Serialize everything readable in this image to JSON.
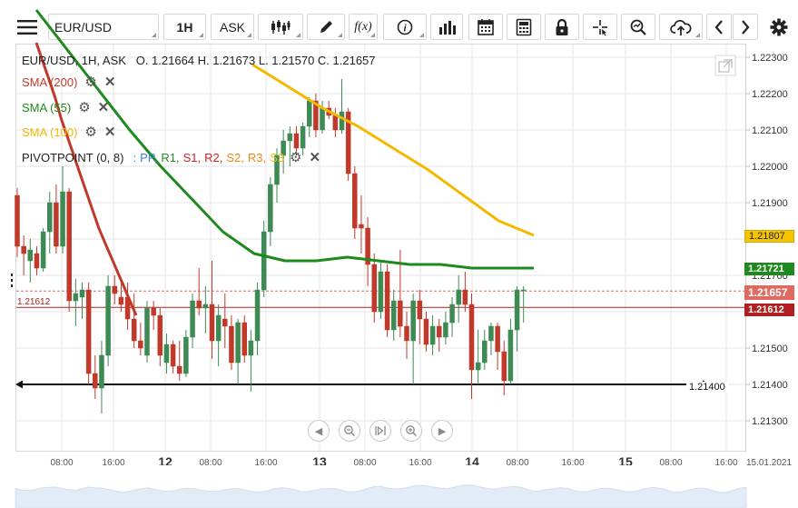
{
  "toolbar": {
    "menu_icon": "hamburger-menu-icon",
    "symbol": "EUR/USD",
    "timeframe": "1H",
    "price_type": "ASK",
    "buttons": [
      "candle-type-icon",
      "draw-pencil-icon",
      "function-fx-icon",
      "info-icon",
      "bar-chart-icon",
      "calendar-icon",
      "calculator-icon",
      "lock-icon",
      "crosshair-icon",
      "zoom-search-icon",
      "cloud-upload-icon",
      "arrow-left-icon",
      "arrow-right-icon",
      "gear-icon"
    ],
    "fx_label": "f(x)"
  },
  "legend": {
    "ohlc": "EUR/USD, 1H, ASK   O. 1.21664 H. 1.21673 L. 1.21570 C. 1.21657",
    "sma200": "SMA (200)",
    "sma55": "SMA (55)",
    "sma100": "SMA (100)",
    "pivot_name": "PIVOTPOINT (0, 8)",
    "pivot_sep": ":",
    "pivot_items": [
      {
        "label": "PP,",
        "color": "#3a7ed8"
      },
      {
        "label": "R1,",
        "color": "#2a8a2a"
      },
      {
        "label": "S1,",
        "color": "#d42020"
      },
      {
        "label": "R2,",
        "color": "#d42020"
      },
      {
        "label": "S2,",
        "color": "#f08a10"
      },
      {
        "label": "R3,",
        "color": "#f08a10"
      },
      {
        "label": "S3",
        "color": "#f0c010"
      }
    ]
  },
  "colors": {
    "up": "#3d8a54",
    "down": "#c0392b",
    "sma200": "#c0392b",
    "sma55": "#1e8a1e",
    "sma100": "#f5b800",
    "grid": "#e6e6e6"
  },
  "price_axis": {
    "ticks": [
      "1.22300",
      "1.22200",
      "1.22100",
      "1.22000",
      "1.21900",
      "1.21800",
      "1.21700",
      "1.21600",
      "1.21500",
      "1.21400",
      "1.21300"
    ]
  },
  "price_tags": {
    "sma100": {
      "value": "1.21807",
      "bg": "#f5c400",
      "fg": "#222222"
    },
    "sma55": {
      "value": "1.21721",
      "bg": "#1e8a1e",
      "fg": "#ffffff"
    },
    "last": {
      "value": "1.21657",
      "bg": "#e06a60",
      "fg": "#ffffff"
    },
    "line": {
      "value": "1.21612",
      "bg": "#b02020",
      "fg": "#ffffff"
    }
  },
  "hline_left_label": "1.21612",
  "hline_right_label": "1.21400",
  "time_axis": {
    "labels": [
      {
        "t": "08:00",
        "bold": false
      },
      {
        "t": "16:00",
        "bold": false
      },
      {
        "t": "12",
        "bold": true
      },
      {
        "t": "08:00",
        "bold": false
      },
      {
        "t": "16:00",
        "bold": false
      },
      {
        "t": "13",
        "bold": true
      },
      {
        "t": "08:00",
        "bold": false
      },
      {
        "t": "16:00",
        "bold": false
      },
      {
        "t": "14",
        "bold": true
      },
      {
        "t": "08:00",
        "bold": false
      },
      {
        "t": "16:00",
        "bold": false
      },
      {
        "t": "15",
        "bold": true
      },
      {
        "t": "08:00",
        "bold": false
      },
      {
        "t": "16:00",
        "bold": false
      },
      {
        "t": "15.01.2021",
        "bold": false
      }
    ]
  },
  "nav_buttons": [
    "prev-icon",
    "zoom-out-icon",
    "reset-icon",
    "zoom-in-icon",
    "next-icon"
  ],
  "chart_data": {
    "type": "candlestick",
    "symbol": "EUR/USD",
    "interval": "1H",
    "ylim": [
      1.2126,
      1.2232
    ],
    "candles": [
      {
        "o": 1.2192,
        "h": 1.2194,
        "l": 1.2175,
        "c": 1.2178
      },
      {
        "o": 1.2178,
        "h": 1.2181,
        "l": 1.217,
        "c": 1.2176
      },
      {
        "o": 1.2174,
        "h": 1.218,
        "l": 1.2168,
        "c": 1.2177
      },
      {
        "o": 1.2176,
        "h": 1.2178,
        "l": 1.217,
        "c": 1.2172
      },
      {
        "o": 1.2172,
        "h": 1.2183,
        "l": 1.2171,
        "c": 1.2182
      },
      {
        "o": 1.2182,
        "h": 1.2193,
        "l": 1.2176,
        "c": 1.219
      },
      {
        "o": 1.219,
        "h": 1.2195,
        "l": 1.2176,
        "c": 1.2178
      },
      {
        "o": 1.2178,
        "h": 1.22,
        "l": 1.2176,
        "c": 1.2193
      },
      {
        "o": 1.2193,
        "h": 1.2194,
        "l": 1.216,
        "c": 1.2163
      },
      {
        "o": 1.2163,
        "h": 1.2169,
        "l": 1.2156,
        "c": 1.2165
      },
      {
        "o": 1.2164,
        "h": 1.2168,
        "l": 1.2158,
        "c": 1.2166
      },
      {
        "o": 1.2166,
        "h": 1.2168,
        "l": 1.214,
        "c": 1.2143
      },
      {
        "o": 1.2143,
        "h": 1.2148,
        "l": 1.2136,
        "c": 1.2139
      },
      {
        "o": 1.2139,
        "h": 1.2152,
        "l": 1.2132,
        "c": 1.2148
      },
      {
        "o": 1.2148,
        "h": 1.217,
        "l": 1.2145,
        "c": 1.2167
      },
      {
        "o": 1.2167,
        "h": 1.217,
        "l": 1.2162,
        "c": 1.2165
      },
      {
        "o": 1.2164,
        "h": 1.2168,
        "l": 1.216,
        "c": 1.2162
      },
      {
        "o": 1.2164,
        "h": 1.2168,
        "l": 1.2155,
        "c": 1.2158
      },
      {
        "o": 1.2158,
        "h": 1.2165,
        "l": 1.215,
        "c": 1.2152
      },
      {
        "o": 1.2152,
        "h": 1.2157,
        "l": 1.2148,
        "c": 1.215
      },
      {
        "o": 1.2148,
        "h": 1.2163,
        "l": 1.2146,
        "c": 1.2161
      },
      {
        "o": 1.2161,
        "h": 1.2163,
        "l": 1.2155,
        "c": 1.2159
      },
      {
        "o": 1.2159,
        "h": 1.2161,
        "l": 1.2145,
        "c": 1.2148
      },
      {
        "o": 1.2146,
        "h": 1.2154,
        "l": 1.2143,
        "c": 1.2151
      },
      {
        "o": 1.2151,
        "h": 1.2152,
        "l": 1.2143,
        "c": 1.2145
      },
      {
        "o": 1.2145,
        "h": 1.2152,
        "l": 1.2141,
        "c": 1.2143
      },
      {
        "o": 1.2143,
        "h": 1.2155,
        "l": 1.2142,
        "c": 1.2153
      },
      {
        "o": 1.2153,
        "h": 1.2165,
        "l": 1.215,
        "c": 1.2163
      },
      {
        "o": 1.2163,
        "h": 1.2172,
        "l": 1.2159,
        "c": 1.2161
      },
      {
        "o": 1.2161,
        "h": 1.2167,
        "l": 1.2154,
        "c": 1.2162
      },
      {
        "o": 1.2162,
        "h": 1.2174,
        "l": 1.2147,
        "c": 1.2152
      },
      {
        "o": 1.2152,
        "h": 1.2162,
        "l": 1.2145,
        "c": 1.2159
      },
      {
        "o": 1.2158,
        "h": 1.2165,
        "l": 1.215,
        "c": 1.2156
      },
      {
        "o": 1.2156,
        "h": 1.2159,
        "l": 1.2144,
        "c": 1.2146
      },
      {
        "o": 1.2146,
        "h": 1.2158,
        "l": 1.214,
        "c": 1.2157
      },
      {
        "o": 1.2157,
        "h": 1.2159,
        "l": 1.2146,
        "c": 1.2148
      },
      {
        "o": 1.2148,
        "h": 1.2155,
        "l": 1.2138,
        "c": 1.2152
      },
      {
        "o": 1.2152,
        "h": 1.2168,
        "l": 1.2148,
        "c": 1.2166
      },
      {
        "o": 1.2166,
        "h": 1.2185,
        "l": 1.2164,
        "c": 1.2182
      },
      {
        "o": 1.2182,
        "h": 1.2197,
        "l": 1.2178,
        "c": 1.2195
      },
      {
        "o": 1.2195,
        "h": 1.2205,
        "l": 1.219,
        "c": 1.2203
      },
      {
        "o": 1.2203,
        "h": 1.221,
        "l": 1.2198,
        "c": 1.2207
      },
      {
        "o": 1.2207,
        "h": 1.2211,
        "l": 1.22,
        "c": 1.2209
      },
      {
        "o": 1.2209,
        "h": 1.2211,
        "l": 1.2203,
        "c": 1.2205
      },
      {
        "o": 1.2205,
        "h": 1.2212,
        "l": 1.2203,
        "c": 1.2211
      },
      {
        "o": 1.2211,
        "h": 1.2219,
        "l": 1.2208,
        "c": 1.2218
      },
      {
        "o": 1.2218,
        "h": 1.222,
        "l": 1.2208,
        "c": 1.221
      },
      {
        "o": 1.221,
        "h": 1.2218,
        "l": 1.2209,
        "c": 1.2216
      },
      {
        "o": 1.2216,
        "h": 1.2218,
        "l": 1.2213,
        "c": 1.2214
      },
      {
        "o": 1.2214,
        "h": 1.2216,
        "l": 1.2208,
        "c": 1.221
      },
      {
        "o": 1.221,
        "h": 1.2224,
        "l": 1.2209,
        "c": 1.2215
      },
      {
        "o": 1.2215,
        "h": 1.2216,
        "l": 1.2196,
        "c": 1.2198
      },
      {
        "o": 1.2198,
        "h": 1.22,
        "l": 1.218,
        "c": 1.2183
      },
      {
        "o": 1.2184,
        "h": 1.2192,
        "l": 1.2176,
        "c": 1.2183
      },
      {
        "o": 1.2183,
        "h": 1.2186,
        "l": 1.2167,
        "c": 1.2173
      },
      {
        "o": 1.2173,
        "h": 1.2176,
        "l": 1.2157,
        "c": 1.216
      },
      {
        "o": 1.216,
        "h": 1.2174,
        "l": 1.2158,
        "c": 1.2171
      },
      {
        "o": 1.2171,
        "h": 1.2173,
        "l": 1.2153,
        "c": 1.2155
      },
      {
        "o": 1.2155,
        "h": 1.2166,
        "l": 1.2152,
        "c": 1.2163
      },
      {
        "o": 1.2163,
        "h": 1.2177,
        "l": 1.2153,
        "c": 1.2156
      },
      {
        "o": 1.2156,
        "h": 1.216,
        "l": 1.2147,
        "c": 1.2152
      },
      {
        "o": 1.2152,
        "h": 1.2165,
        "l": 1.214,
        "c": 1.2163
      },
      {
        "o": 1.2163,
        "h": 1.2166,
        "l": 1.2151,
        "c": 1.2158
      },
      {
        "o": 1.2158,
        "h": 1.216,
        "l": 1.2149,
        "c": 1.2151
      },
      {
        "o": 1.2151,
        "h": 1.2159,
        "l": 1.2148,
        "c": 1.2156
      },
      {
        "o": 1.2156,
        "h": 1.2158,
        "l": 1.2149,
        "c": 1.2153
      },
      {
        "o": 1.2153,
        "h": 1.216,
        "l": 1.2151,
        "c": 1.2157
      },
      {
        "o": 1.2157,
        "h": 1.2164,
        "l": 1.2153,
        "c": 1.2162
      },
      {
        "o": 1.2162,
        "h": 1.217,
        "l": 1.2157,
        "c": 1.2166
      },
      {
        "o": 1.2166,
        "h": 1.2171,
        "l": 1.216,
        "c": 1.2162
      },
      {
        "o": 1.2162,
        "h": 1.2165,
        "l": 1.2136,
        "c": 1.2144
      },
      {
        "o": 1.2144,
        "h": 1.2155,
        "l": 1.214,
        "c": 1.2146
      },
      {
        "o": 1.2146,
        "h": 1.2155,
        "l": 1.2144,
        "c": 1.2152
      },
      {
        "o": 1.2152,
        "h": 1.2157,
        "l": 1.2148,
        "c": 1.2156
      },
      {
        "o": 1.2156,
        "h": 1.2157,
        "l": 1.2144,
        "c": 1.2149
      },
      {
        "o": 1.2149,
        "h": 1.2152,
        "l": 1.2137,
        "c": 1.2141
      },
      {
        "o": 1.2141,
        "h": 1.2158,
        "l": 1.214,
        "c": 1.2155
      },
      {
        "o": 1.2155,
        "h": 1.2167,
        "l": 1.2149,
        "c": 1.2166
      },
      {
        "o": 1.2166,
        "h": 1.2167,
        "l": 1.2157,
        "c": 1.2166
      }
    ],
    "overlays": [
      {
        "name": "SMA (200)",
        "values": [
          1.2234,
          1.2229,
          1.2224,
          1.2219,
          1.2213,
          1.2208,
          1.2203,
          1.2198,
          1.2193,
          1.2188,
          1.2183,
          1.2179,
          1.2175,
          1.2171,
          1.2167,
          1.2163,
          1.2159
        ]
      },
      {
        "name": "SMA (55)",
        "values": [
          1.2243,
          1.2232,
          1.2221,
          1.221,
          1.22,
          1.2191,
          1.2182,
          1.2176,
          1.2174,
          1.2174,
          1.2175,
          1.2174,
          1.2173,
          1.2173,
          1.2172,
          1.2172,
          1.2172
        ]
      },
      {
        "name": "SMA (100)",
        "values": [
          1.2228,
          1.2222,
          1.2216,
          1.2211,
          1.2205,
          1.2199,
          1.2192,
          1.2185,
          1.2181
        ]
      }
    ],
    "hlines": [
      1.21612,
      1.214
    ],
    "last_price": 1.21657
  }
}
